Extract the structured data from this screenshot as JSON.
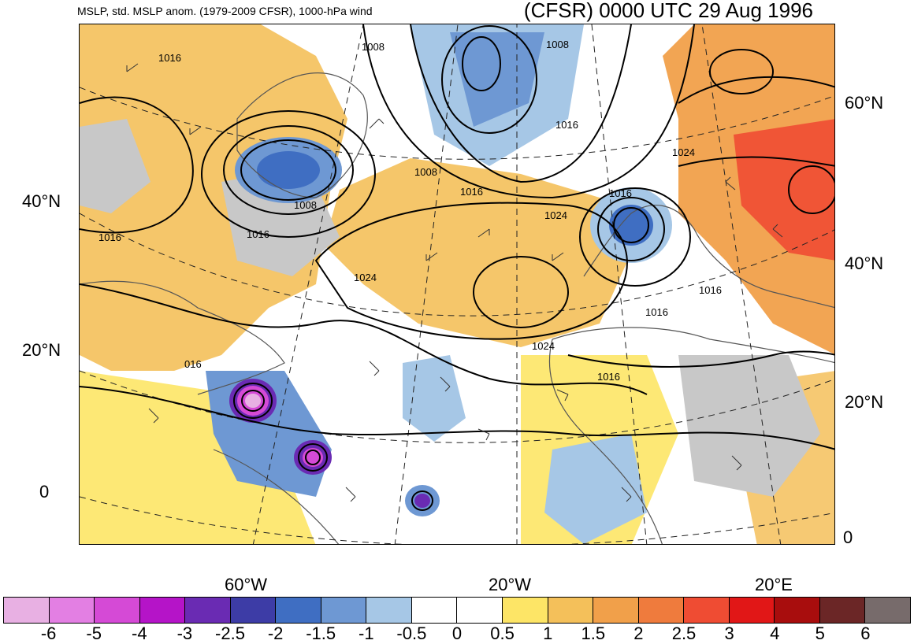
{
  "header": {
    "left": "MSLP, std. MSLP anom. (1979-2009 CFSR), 1000-hPa wind",
    "right": "(CFSR) 0000 UTC 29 Aug 1996"
  },
  "axes": {
    "lat_left": [
      "40°N",
      "20°N",
      "0"
    ],
    "lat_right": [
      "60°N",
      "40°N",
      "20°N",
      "0"
    ],
    "lon_bottom": [
      "60°W",
      "20°W",
      "20°E"
    ]
  },
  "contour_labels": [
    "1016",
    "1008",
    "1008",
    "1016",
    "1008",
    "1008",
    "1016",
    "1016",
    "1024",
    "1016",
    "1016",
    "1024",
    "1024",
    "1016",
    "1016",
    "1016",
    "016",
    "1024"
  ],
  "colorbar": {
    "labels": [
      "-6",
      "-5",
      "-4",
      "-3",
      "-2.5",
      "-2",
      "-1.5",
      "-1",
      "-0.5",
      "0",
      "0.5",
      "1",
      "1.5",
      "2",
      "2.5",
      "3",
      "4",
      "5",
      "6"
    ],
    "colors": [
      "#e8b0e3",
      "#e37fe3",
      "#d54ad6",
      "#b514c8",
      "#6a2bb3",
      "#3d3ca6",
      "#3f6ec2",
      "#6e98d3",
      "#a6c7e6",
      "#ffffff",
      "#ffffff",
      "#fde566",
      "#f4c05a",
      "#f1a04a",
      "#ef7b3d",
      "#ef4c33",
      "#e11717",
      "#a80d0d",
      "#6b2626",
      "#776b6b"
    ]
  }
}
